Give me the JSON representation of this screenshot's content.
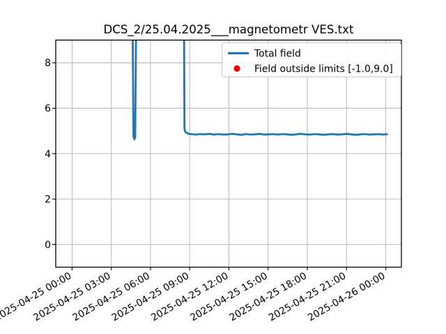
{
  "colors": {
    "line": "#1f77b4",
    "out_of_limit_marker": "#ff0000",
    "grid": "#b0b0b0",
    "spine": "#000000",
    "background": "#ffffff",
    "legend_border": "#cccccc",
    "legend_background": "#ffffff",
    "text": "#000000"
  },
  "legend": {
    "position": "upper right",
    "items": [
      {
        "label": "Total field",
        "marker": "line",
        "color": "#1f77b4"
      },
      {
        "label": "Field outside limits [-1.0,9.0]",
        "marker": "dot",
        "color": "#ff0000"
      }
    ]
  },
  "chart_data": {
    "type": "line",
    "title": "DCS_2/25.04.2025___magnetometr VES.txt",
    "xlabel": "",
    "ylabel": "",
    "x_unit": "hours since 2025-04-25 00:00",
    "xlim": [
      -1.25,
      25.2
    ],
    "ylim": [
      -1.0,
      9.0
    ],
    "grid": true,
    "y_ticks": [
      0,
      2,
      4,
      6,
      8
    ],
    "x_ticks": [
      {
        "hour": 0,
        "label": "2025-04-25 00:00"
      },
      {
        "hour": 3,
        "label": "2025-04-25 03:00"
      },
      {
        "hour": 6,
        "label": "2025-04-25 06:00"
      },
      {
        "hour": 9,
        "label": "2025-04-25 09:00"
      },
      {
        "hour": 12,
        "label": "2025-04-25 12:00"
      },
      {
        "hour": 15,
        "label": "2025-04-25 15:00"
      },
      {
        "hour": 18,
        "label": "2025-04-25 18:00"
      },
      {
        "hour": 21,
        "label": "2025-04-25 21:00"
      },
      {
        "hour": 24,
        "label": "2025-04-26 00:00"
      }
    ],
    "series": [
      {
        "name": "Total field",
        "color": "#1f77b4",
        "note": "values above ylim are clipped at plot top; 12 represents off-scale-high",
        "points": [
          [
            0.0,
            12
          ],
          [
            4.6,
            12
          ],
          [
            4.7,
            4.75
          ],
          [
            4.77,
            4.63
          ],
          [
            4.83,
            4.72
          ],
          [
            4.93,
            12
          ],
          [
            8.55,
            12
          ],
          [
            8.6,
            5.1
          ],
          [
            8.66,
            4.96
          ],
          [
            8.76,
            4.91
          ],
          [
            8.9,
            4.88
          ],
          [
            9.1,
            4.86
          ],
          [
            9.45,
            4.84
          ],
          [
            9.8,
            4.86
          ],
          [
            10.15,
            4.85
          ],
          [
            10.5,
            4.87
          ],
          [
            10.85,
            4.84
          ],
          [
            11.2,
            4.86
          ],
          [
            11.55,
            4.84
          ],
          [
            11.9,
            4.85
          ],
          [
            12.25,
            4.87
          ],
          [
            12.6,
            4.85
          ],
          [
            12.95,
            4.83
          ],
          [
            13.3,
            4.86
          ],
          [
            13.65,
            4.84
          ],
          [
            14.0,
            4.85
          ],
          [
            14.35,
            4.87
          ],
          [
            14.7,
            4.84
          ],
          [
            15.05,
            4.85
          ],
          [
            15.4,
            4.86
          ],
          [
            15.75,
            4.84
          ],
          [
            16.1,
            4.86
          ],
          [
            16.45,
            4.85
          ],
          [
            16.8,
            4.83
          ],
          [
            17.15,
            4.85
          ],
          [
            17.5,
            4.87
          ],
          [
            17.85,
            4.85
          ],
          [
            18.2,
            4.84
          ],
          [
            18.55,
            4.86
          ],
          [
            18.9,
            4.85
          ],
          [
            19.25,
            4.83
          ],
          [
            19.6,
            4.85
          ],
          [
            19.95,
            4.86
          ],
          [
            20.3,
            4.84
          ],
          [
            20.65,
            4.85
          ],
          [
            21.0,
            4.87
          ],
          [
            21.35,
            4.85
          ],
          [
            21.7,
            4.83
          ],
          [
            22.05,
            4.85
          ],
          [
            22.4,
            4.86
          ],
          [
            22.75,
            4.84
          ],
          [
            23.1,
            4.85
          ],
          [
            23.45,
            4.86
          ],
          [
            23.8,
            4.84
          ],
          [
            24.16,
            4.86
          ]
        ]
      }
    ],
    "out_of_limit_points_visible": []
  }
}
